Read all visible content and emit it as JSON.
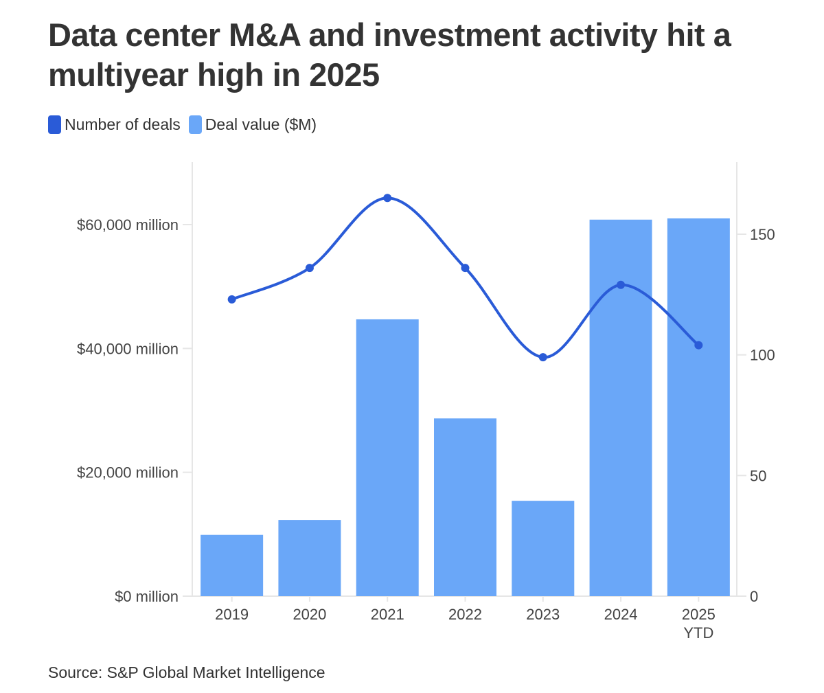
{
  "title": "Data center M&A and investment activity hit a multiyear high in 2025",
  "legend": [
    {
      "label": "Number of deals",
      "color": "#2a5bd7"
    },
    {
      "label": "Deal value ($M)",
      "color": "#6aa7f8"
    }
  ],
  "source": "Source: S&P Global Market Intelligence",
  "chart_data": {
    "type": "bar+line",
    "title": "Data center M&A and investment activity hit a multiyear high in 2025",
    "categories": [
      [
        "2019"
      ],
      [
        "2020"
      ],
      [
        "2021"
      ],
      [
        "2022"
      ],
      [
        "2023"
      ],
      [
        "2024"
      ],
      [
        "2025",
        "YTD"
      ]
    ],
    "category_labels": [
      "2019",
      "2020",
      "2021",
      "2022",
      "2023",
      "2024",
      "2025 YTD"
    ],
    "series": [
      {
        "name": "Deal value ($M)",
        "type": "bar",
        "axis": "left",
        "color": "#6aa7f8",
        "values": [
          9900,
          12300,
          44700,
          28700,
          15400,
          60800,
          61000
        ]
      },
      {
        "name": "Number of deals",
        "type": "line",
        "axis": "right",
        "color": "#2a5bd7",
        "smooth": true,
        "values": [
          123,
          136,
          165,
          136,
          99,
          129,
          104
        ]
      }
    ],
    "left_axis": {
      "min": 0,
      "max": 60000,
      "ticks": [
        0,
        20000,
        40000,
        60000
      ],
      "tick_labels": [
        "$0 million",
        "$20,000 million",
        "$40,000 million",
        "$60,000 million"
      ]
    },
    "right_axis": {
      "min": 0,
      "max": 150,
      "ticks": [
        0,
        50,
        100,
        150
      ],
      "tick_labels": [
        "0",
        "50",
        "100",
        "150"
      ]
    },
    "xlabel": "",
    "ylabel": "",
    "grid": false,
    "legend_position": "top-left"
  }
}
